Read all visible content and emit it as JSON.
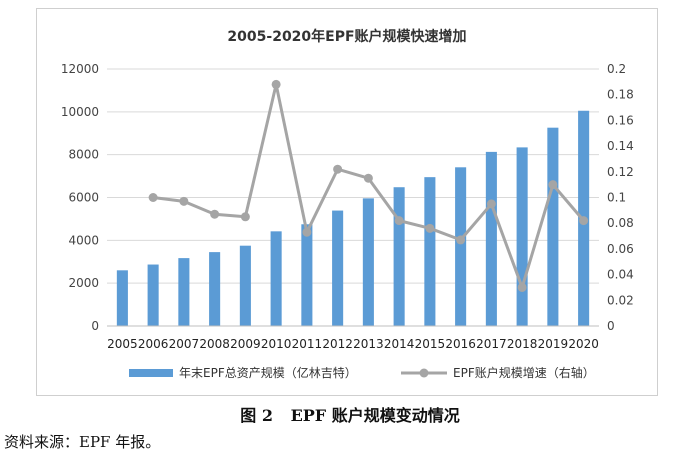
{
  "chart_data": {
    "type": "bar+line",
    "title": "2005-2020年EPF账户规模快速增加",
    "categories": [
      "2005",
      "2006",
      "2007",
      "2008",
      "2009",
      "2010",
      "2011",
      "2012",
      "2013",
      "2014",
      "2015",
      "2016",
      "2017",
      "2018",
      "2019",
      "2020"
    ],
    "series": [
      {
        "name": "年末EPF总资产规模（亿林吉特）",
        "type": "bar",
        "axis": "left",
        "color": "#5b9bd5",
        "values": [
          2600,
          2870,
          3170,
          3450,
          3750,
          4420,
          4750,
          5390,
          5960,
          6480,
          6950,
          7410,
          8130,
          8340,
          9260,
          10050
        ]
      },
      {
        "name": "EPF账户规模增速（右轴）",
        "type": "line",
        "axis": "right",
        "color": "#a5a5a5",
        "values": [
          null,
          0.1,
          0.097,
          0.087,
          0.085,
          0.188,
          0.073,
          0.122,
          0.115,
          0.082,
          0.076,
          0.067,
          0.095,
          0.03,
          0.11,
          0.082
        ]
      }
    ],
    "y_left": {
      "min": 0,
      "max": 12000,
      "ticks": [
        "0",
        "2000",
        "4000",
        "6000",
        "8000",
        "10000",
        "12000"
      ]
    },
    "y_right": {
      "min": 0,
      "max": 0.2,
      "ticks": [
        "0",
        "0.02",
        "0.04",
        "0.06",
        "0.08",
        "0.1",
        "0.12",
        "0.14",
        "0.16",
        "0.18",
        "0.2"
      ]
    },
    "grid": "horizontal",
    "legend": "bottom"
  },
  "figure_caption": {
    "label": "图 2",
    "text": "EPF 账户规模变动情况"
  },
  "source_note": "资料来源：EPF 年报。"
}
